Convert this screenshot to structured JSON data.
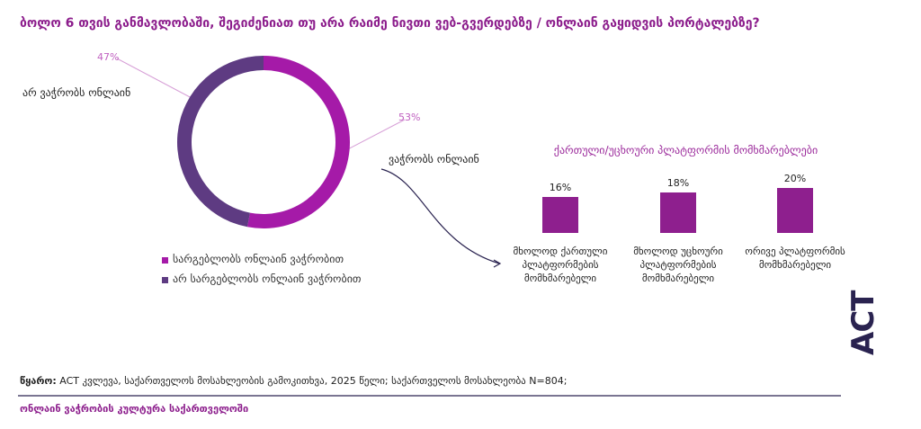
{
  "title": "ბოლო 6 თვის განმავლობაში, შეგიძენიათ თუ არა რაიმე ნივთი ვებ-გვერდებზე / ონლაინ გაყიდვის პორტალებზე?",
  "chart_data": [
    {
      "type": "pie",
      "categories": [
        "სარგებლობს ონლაინ ვაჭრობით",
        "არ სარგებლობს ონლაინ ვაჭრობით"
      ],
      "values": [
        53,
        47
      ],
      "value_labels": [
        "53%",
        "47%"
      ],
      "labels": [
        "ვაჭრობს ონლაინ",
        "არ ვაჭრობს ონლაინ"
      ],
      "colors": [
        "#a51aa8",
        "#5e3b82"
      ]
    },
    {
      "type": "bar",
      "title": "ქართული/უცხოური პლატფორმის მომხმარებლები",
      "categories": [
        "მხოლოდ ქართული პლატფორმების მომხმარებელი",
        "მხოლოდ უცხოური პლატფორმების მომხმარებელი",
        "ორივე პლატფორმის მომხმარებელი"
      ],
      "values": [
        16,
        18,
        20
      ],
      "value_labels": [
        "16%",
        "18%",
        "20%"
      ],
      "color": "#8e1f8e"
    }
  ],
  "source_label": "წყარო:",
  "source": "ACT კვლევა, საქართველოს მოსახლეობის გამოკითხვა, 2025 წელი; საქართველოს მოსახლეობა N=804;",
  "footer": "ონლაინ ვაჭრობის კულტურა საქართველოში",
  "logo": "ACT"
}
